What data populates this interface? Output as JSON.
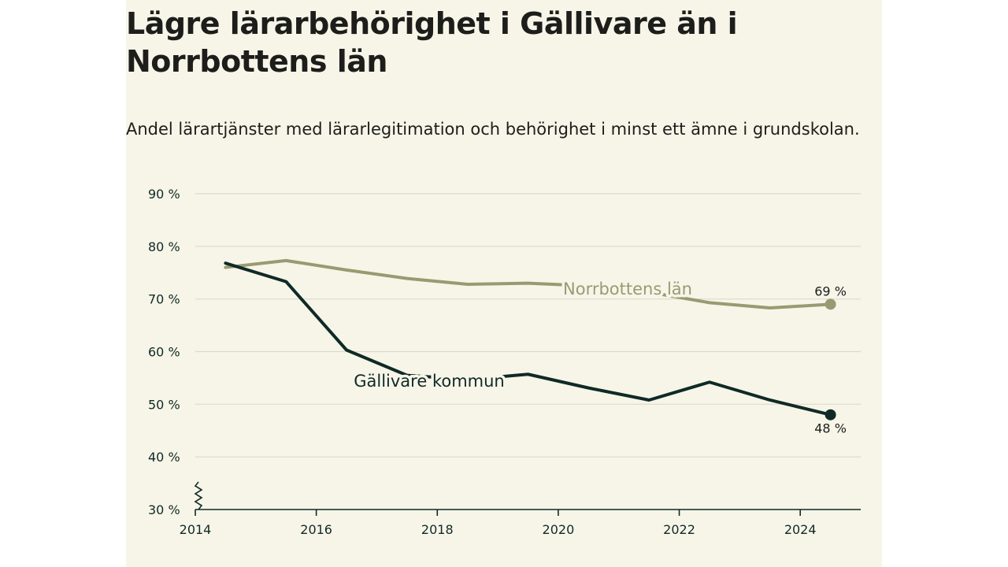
{
  "title": "Lägre lärarbehörighet i Gällivare än i Norrbottens län",
  "subtitle": "Andel lärartjänster med lärarlegitimation och behörighet i minst ett ämne i grundskolan.",
  "chart_data": {
    "type": "line",
    "title": "Lägre lärarbehörighet i Gällivare än i Norrbottens län",
    "subtitle": "Andel lärartjänster med lärarlegitimation och behörighet i minst ett ämne i grundskolan.",
    "ylim": [
      30,
      90
    ],
    "xlim": [
      2014,
      2025
    ],
    "y_ticks": [
      30,
      40,
      50,
      60,
      70,
      80,
      90
    ],
    "y_tick_labels": [
      "30 %",
      "40 %",
      "50 %",
      "60 %",
      "70 %",
      "80 %",
      "90 %"
    ],
    "x_ticks": [
      2014,
      2016,
      2018,
      2020,
      2022,
      2024
    ],
    "x_tick_labels": [
      "2014",
      "2016",
      "2018",
      "2020",
      "2022",
      "2024"
    ],
    "y_axis_broken": true,
    "grid": true,
    "series": [
      {
        "name": "Norrbottens län",
        "color": "#9a9a72",
        "x": [
          2014.5,
          2015.5,
          2016.5,
          2017.5,
          2018.5,
          2019.5,
          2020.5,
          2021.5,
          2022.5,
          2023.5,
          2024.5
        ],
        "values": [
          76.0,
          77.3,
          75.5,
          73.9,
          72.8,
          73.0,
          72.5,
          71.3,
          69.3,
          68.3,
          69.0
        ],
        "end_label": "69 %"
      },
      {
        "name": "Gällivare kommun",
        "color": "#0f2a26",
        "x": [
          2014.5,
          2015.5,
          2016.5,
          2017.5,
          2018.5,
          2019.5,
          2020.5,
          2021.5,
          2022.5,
          2023.5,
          2024.5
        ],
        "values": [
          76.8,
          73.3,
          60.3,
          55.5,
          54.7,
          55.7,
          53.1,
          50.8,
          54.2,
          50.8,
          48.0
        ],
        "end_label": "48 %"
      }
    ]
  }
}
